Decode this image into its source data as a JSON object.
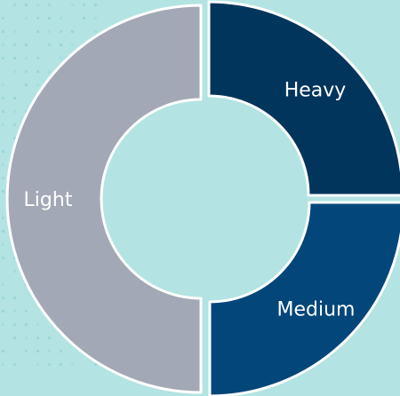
{
  "chart_data": {
    "type": "pie",
    "variant": "donut",
    "title": "",
    "categories": [
      "Heavy",
      "Medium",
      "Light"
    ],
    "values": [
      25,
      25,
      50
    ],
    "colors": [
      "#02355c",
      "#03467a",
      "#a2a8b6"
    ],
    "legend": "none",
    "labels_on_slices": true
  },
  "style": {
    "background": "#b3e3e3",
    "slice_border": "#ffffff",
    "dot_pattern_color": "#8fcfd0"
  }
}
